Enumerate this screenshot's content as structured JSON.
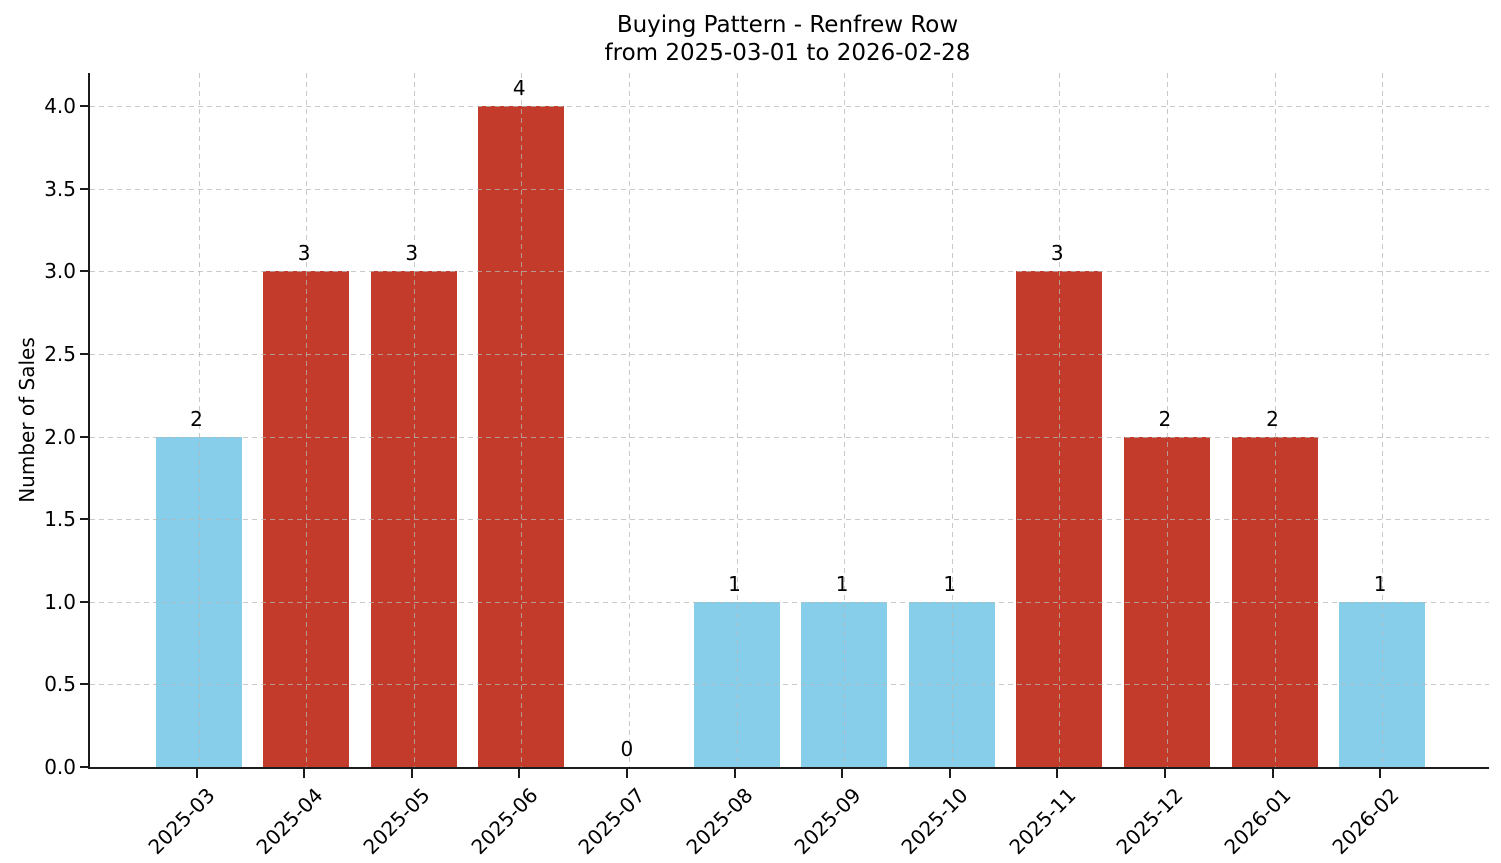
{
  "chart_data": {
    "type": "bar",
    "title": "Buying Pattern - Renfrew Row",
    "subtitle": "from 2025-03-01 to 2026-02-28",
    "xlabel": "",
    "ylabel": "Number of Sales",
    "categories": [
      "2025-03",
      "2025-04",
      "2025-05",
      "2025-06",
      "2025-07",
      "2025-08",
      "2025-09",
      "2025-10",
      "2025-11",
      "2025-12",
      "2026-01",
      "2026-02"
    ],
    "values": [
      2,
      3,
      3,
      4,
      0,
      1,
      1,
      1,
      3,
      2,
      2,
      1
    ],
    "value_labels": [
      "2",
      "3",
      "3",
      "4",
      "0",
      "1",
      "1",
      "1",
      "3",
      "2",
      "2",
      "1"
    ],
    "bar_colors": [
      "#87CEEB",
      "#C23B2B",
      "#C23B2B",
      "#C23B2B",
      null,
      "#87CEEB",
      "#87CEEB",
      "#87CEEB",
      "#C23B2B",
      "#C23B2B",
      "#C23B2B",
      "#87CEEB"
    ],
    "colors": {
      "blue_bar": "#87CEEB",
      "red_bar": "#C23B2B",
      "grid": "#B7B7B7",
      "axis": "#1C1C1C"
    },
    "y_ticks": [
      "0.0",
      "0.5",
      "1.0",
      "1.5",
      "2.0",
      "2.5",
      "3.0",
      "3.5",
      "4.0"
    ],
    "y_tick_values": [
      0,
      0.5,
      1,
      1.5,
      2,
      2.5,
      3,
      3.5,
      4
    ],
    "ylim": [
      0,
      4.2
    ],
    "grid": true,
    "grid_style": "dashed",
    "legend_position": "none"
  }
}
